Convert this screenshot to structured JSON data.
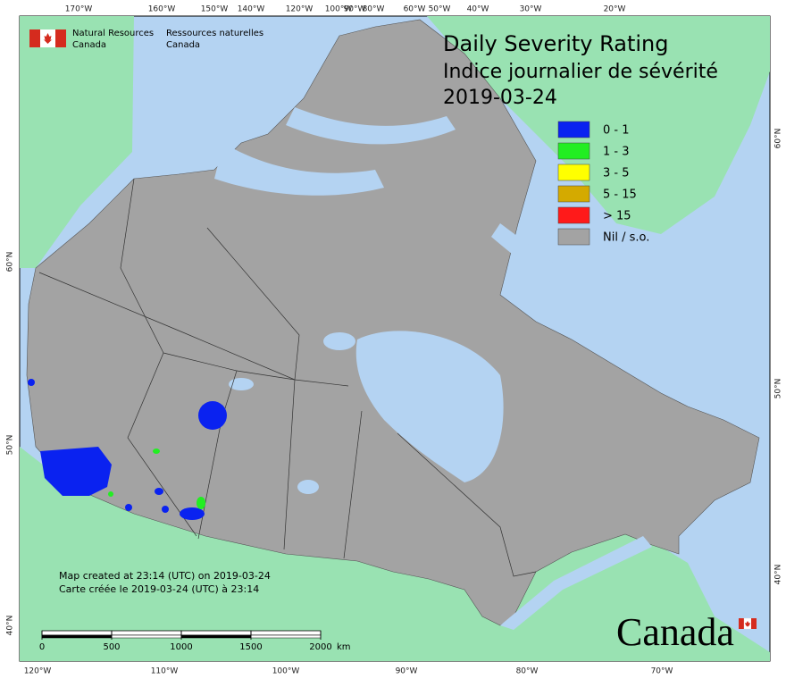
{
  "header": {
    "org_en": [
      "Natural Resources",
      "Canada"
    ],
    "org_fr": [
      "Ressources naturelles",
      "Canada"
    ]
  },
  "title": [
    "Daily Severity Rating",
    "Indice journalier de sévérité",
    "2019-03-24"
  ],
  "legend": [
    {
      "label": "0 - 1",
      "color": "#0a22f0"
    },
    {
      "label": "1 - 3",
      "color": "#22ee22"
    },
    {
      "label": "3 - 5",
      "color": "#ffff00"
    },
    {
      "label": "5 - 15",
      "color": "#d4aa00"
    },
    {
      "label": "> 15",
      "color": "#ff1a1a"
    },
    {
      "label": "Nil / s.o.",
      "color": "#a3a3a3"
    }
  ],
  "graticule": {
    "top": [
      "170°W",
      "160°W",
      "150°W",
      "140°W",
      "120°W",
      "100°W",
      "90°W",
      "80°W",
      "60°W",
      "50°W",
      "40°W",
      "30°W",
      "20°W"
    ],
    "bottom": [
      "120°W",
      "110°W",
      "100°W",
      "90°W",
      "80°W",
      "70°W"
    ],
    "left": [
      "60°N",
      "50°N",
      "40°N"
    ],
    "right": [
      "60°N",
      "50°N",
      "40°N"
    ]
  },
  "notes": [
    "Map created at 23:14 (UTC) on 2019-03-24",
    "Carte créée le 2019-03-24 (UTC) à 23:14"
  ],
  "scale_bar": {
    "ticks": [
      0,
      500,
      1000,
      1500,
      2000
    ],
    "unit": "km"
  },
  "wordmark": "Canada"
}
